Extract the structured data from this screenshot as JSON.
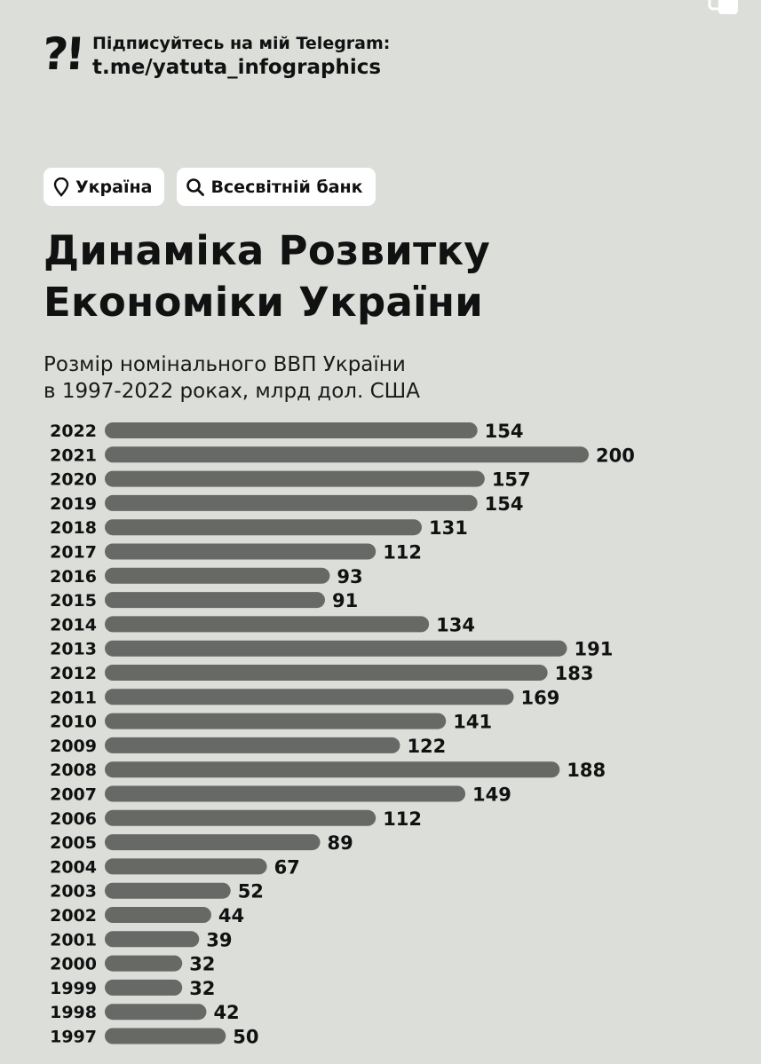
{
  "header": {
    "logo": "?!",
    "telegram_label": "Підписуйтесь на мій Telegram:",
    "telegram_link": "t.me/yatuta_infographics"
  },
  "tags": [
    {
      "icon": "location-pin-icon",
      "label": "Україна"
    },
    {
      "icon": "search-icon",
      "label": "Всесвітній банк"
    }
  ],
  "title_lines": [
    "Динаміка Розвитку",
    "Економіки України"
  ],
  "subtitle_lines": [
    "Розмір номінального ВВП України",
    "в 1997-2022 роках, млрд дол. США"
  ],
  "colors": {
    "background": "#dcdeda",
    "bar": "#676966",
    "tag_bg": "#ffffff",
    "text": "#111111"
  },
  "chart_data": {
    "type": "bar",
    "orientation": "horizontal",
    "categories": [
      "2022",
      "2021",
      "2020",
      "2019",
      "2018",
      "2017",
      "2016",
      "2015",
      "2014",
      "2013",
      "2012",
      "2011",
      "2010",
      "2009",
      "2008",
      "2007",
      "2006",
      "2005",
      "2004",
      "2003",
      "2002",
      "2001",
      "2000",
      "1999",
      "1998",
      "1997"
    ],
    "values": [
      154,
      200,
      157,
      154,
      131,
      112,
      93,
      91,
      134,
      191,
      183,
      169,
      141,
      122,
      188,
      149,
      112,
      89,
      67,
      52,
      44,
      39,
      32,
      32,
      42,
      50
    ],
    "title": "Динаміка Розвитку Економіки України",
    "subtitle": "Розмір номінального ВВП України в 1997-2022 роках, млрд дол. США",
    "xlim": [
      0,
      200
    ],
    "grid": false,
    "legend": "none"
  }
}
